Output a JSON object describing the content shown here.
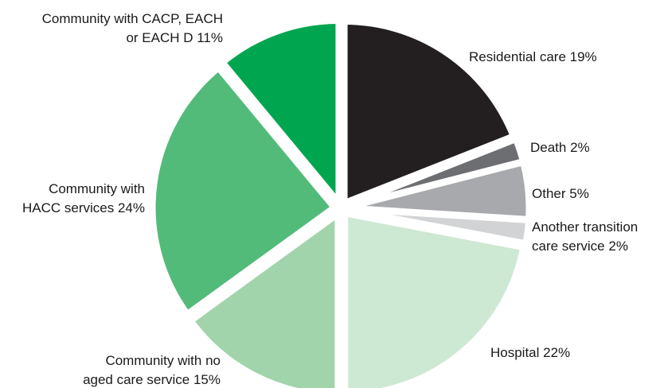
{
  "chart_data": {
    "type": "pie",
    "title": "",
    "slices": [
      {
        "label": "Residential care 19%",
        "lines": [
          "Residential care 19%"
        ],
        "value": 19,
        "color": "#231f20"
      },
      {
        "label": "Death 2%",
        "lines": [
          "Death 2%"
        ],
        "value": 2,
        "color": "#6d6e71"
      },
      {
        "label": "Other 5%",
        "lines": [
          "Other 5%"
        ],
        "value": 5,
        "color": "#a7a9ac"
      },
      {
        "label": "Another transition care service 2%",
        "lines": [
          "Another transition",
          "care service 2%"
        ],
        "value": 2,
        "color": "#d1d3d4"
      },
      {
        "label": "Hospital 22%",
        "lines": [
          "Hospital 22%"
        ],
        "value": 22,
        "color": "#cde8d3"
      },
      {
        "label": "Community with no aged care service 15%",
        "lines": [
          "Community with no",
          "aged care service 15%"
        ],
        "value": 15,
        "color": "#a2d4ac"
      },
      {
        "label": "Community with HACC services 24%",
        "lines": [
          "Community with",
          "HACC services 24%"
        ],
        "value": 24,
        "color": "#52bb7a"
      },
      {
        "label": "Community with CACP, EACH or EACH D 11%",
        "lines": [
          "Community with CACP, EACH",
          "or EACH D 11%"
        ],
        "value": 11,
        "color": "#00a64f"
      }
    ]
  }
}
